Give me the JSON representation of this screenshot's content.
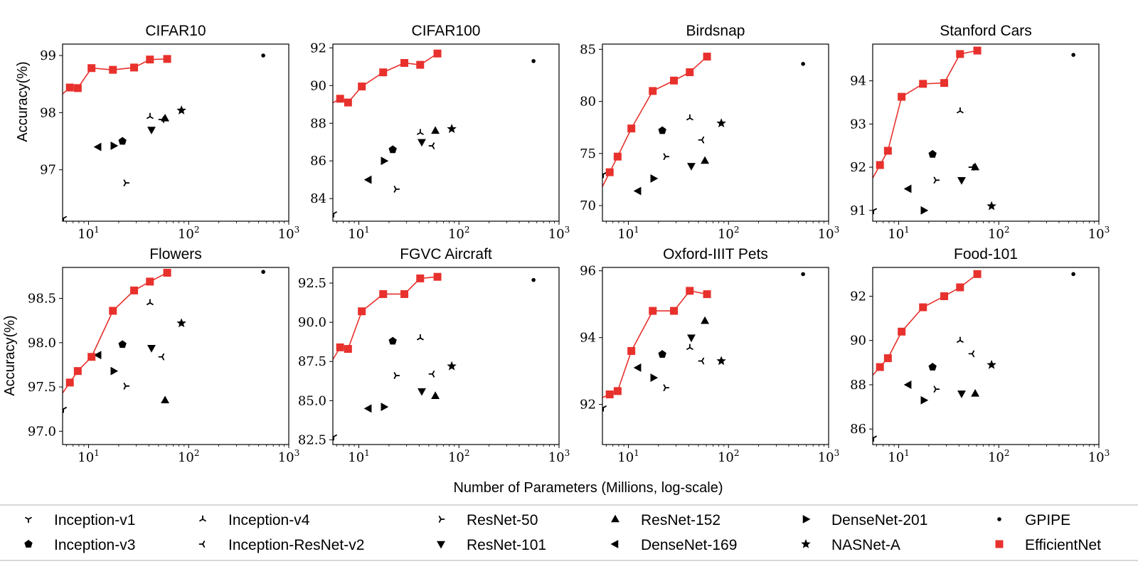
{
  "figure": {
    "xlabel": "Number of Parameters (Millions, log-scale)",
    "ylabel": "Accuracy(%)",
    "x_scale": "log",
    "grid": false,
    "legend_position": "bottom",
    "x_tick_labels": [
      {
        "base": "10",
        "exp": "1"
      },
      {
        "base": "10",
        "exp": "2"
      },
      {
        "base": "10",
        "exp": "3"
      }
    ]
  },
  "series_styles": [
    {
      "name": "Inception-v1",
      "marker": "tri-down-small",
      "color": "#000000"
    },
    {
      "name": "Inception-v3",
      "marker": "pentagon",
      "color": "#000000"
    },
    {
      "name": "Inception-v4",
      "marker": "tri-up-small",
      "color": "#000000"
    },
    {
      "name": "Inception-ResNet-v2",
      "marker": "tri-left-small",
      "color": "#000000"
    },
    {
      "name": "ResNet-50",
      "marker": "tri-right-small",
      "color": "#000000"
    },
    {
      "name": "ResNet-101",
      "marker": "triangle-down",
      "color": "#000000"
    },
    {
      "name": "ResNet-152",
      "marker": "triangle-up",
      "color": "#000000"
    },
    {
      "name": "DenseNet-169",
      "marker": "triangle-left",
      "color": "#000000"
    },
    {
      "name": "DenseNet-201",
      "marker": "triangle-right",
      "color": "#000000"
    },
    {
      "name": "NASNet-A",
      "marker": "star",
      "color": "#000000"
    },
    {
      "name": "GPIPE",
      "marker": "dot",
      "color": "#000000"
    },
    {
      "name": "EfficientNet",
      "marker": "square",
      "color": "#e8312d"
    }
  ],
  "chart_data": [
    {
      "type": "scatter",
      "title": "CIFAR10",
      "x_scale": "log",
      "xlim": [
        5.5,
        1000
      ],
      "ylim": [
        96.1,
        99.2
      ],
      "yticks": [
        97,
        98,
        99
      ],
      "ytick_labels": [
        "97",
        "98",
        "99"
      ],
      "efficientnet": {
        "x": [
          6.5,
          7.8,
          10.7,
          17.5,
          28.5,
          41,
          61
        ],
        "y": [
          98.44,
          98.43,
          98.78,
          98.75,
          98.79,
          98.93,
          98.94
        ]
      },
      "points": {
        "Inception-v1": [
          5.6,
          96.15
        ],
        "Inception-v3": [
          21.8,
          97.5
        ],
        "Inception-v4": [
          41.1,
          97.93
        ],
        "Inception-ResNet-v2": [
          54.3,
          97.88
        ],
        "ResNet-50": [
          23.5,
          96.77
        ],
        "ResNet-101": [
          42.5,
          97.7
        ],
        "ResNet-152": [
          58.1,
          97.9
        ],
        "DenseNet-169": [
          12.5,
          97.4
        ],
        "DenseNet-201": [
          17.8,
          97.42
        ],
        "NASNet-A": [
          84.7,
          98.04
        ],
        "GPIPE": [
          556,
          99.0
        ]
      }
    },
    {
      "type": "scatter",
      "title": "CIFAR100",
      "x_scale": "log",
      "xlim": [
        5.5,
        1000
      ],
      "ylim": [
        82.8,
        92.2
      ],
      "yticks": [
        84,
        86,
        88,
        90,
        92
      ],
      "ytick_labels": [
        "84",
        "86",
        "88",
        "90",
        "92"
      ],
      "efficientnet": {
        "x": [
          6.5,
          7.8,
          10.7,
          17.5,
          28.5,
          41,
          61
        ],
        "y": [
          89.3,
          89.1,
          89.95,
          90.7,
          91.2,
          91.1,
          91.7
        ]
      },
      "points": {
        "Inception-v1": [
          5.6,
          83.2
        ],
        "Inception-v3": [
          21.8,
          86.6
        ],
        "Inception-v4": [
          41.1,
          87.5
        ],
        "Inception-ResNet-v2": [
          54.3,
          86.8
        ],
        "ResNet-50": [
          23.5,
          84.5
        ],
        "ResNet-101": [
          42.5,
          87.0
        ],
        "ResNet-152": [
          58.1,
          87.6
        ],
        "DenseNet-169": [
          12.5,
          85.0
        ],
        "DenseNet-201": [
          17.8,
          86.0
        ],
        "NASNet-A": [
          84.7,
          87.7
        ],
        "GPIPE": [
          556,
          91.3
        ]
      }
    },
    {
      "type": "scatter",
      "title": "Birdsnap",
      "x_scale": "log",
      "xlim": [
        5.5,
        1000
      ],
      "ylim": [
        68.5,
        85.5
      ],
      "yticks": [
        70,
        75,
        80,
        85
      ],
      "ytick_labels": [
        "70",
        "75",
        "80",
        "85"
      ],
      "efficientnet": {
        "x": [
          6.5,
          7.8,
          10.7,
          17.5,
          28.5,
          41,
          61
        ],
        "y": [
          73.2,
          74.7,
          77.4,
          81.0,
          82.0,
          82.8,
          84.3
        ]
      },
      "points": {
        "Inception-v1": [
          5.6,
          73.0
        ],
        "Inception-v3": [
          21.8,
          77.2
        ],
        "Inception-v4": [
          41.1,
          78.4
        ],
        "Inception-ResNet-v2": [
          54.3,
          76.3
        ],
        "ResNet-50": [
          23.5,
          74.7
        ],
        "ResNet-101": [
          42.5,
          73.8
        ],
        "ResNet-152": [
          58.1,
          74.3
        ],
        "DenseNet-169": [
          12.5,
          71.4
        ],
        "DenseNet-201": [
          17.8,
          72.6
        ],
        "NASNet-A": [
          84.7,
          77.9
        ],
        "GPIPE": [
          556,
          83.6
        ]
      }
    },
    {
      "type": "scatter",
      "title": "Stanford Cars",
      "x_scale": "log",
      "xlim": [
        5.5,
        1000
      ],
      "ylim": [
        90.75,
        94.85
      ],
      "yticks": [
        91,
        92,
        93,
        94
      ],
      "ytick_labels": [
        "91",
        "92",
        "93",
        "94"
      ],
      "efficientnet": {
        "x": [
          6.5,
          7.8,
          10.7,
          17.5,
          28.5,
          41,
          61
        ],
        "y": [
          92.05,
          92.38,
          93.63,
          93.93,
          93.95,
          94.62,
          94.7
        ]
      },
      "points": {
        "Inception-v1": [
          5.6,
          91.0
        ],
        "Inception-v3": [
          21.8,
          92.3
        ],
        "Inception-v4": [
          41.1,
          93.3
        ],
        "Inception-ResNet-v2": [
          54.3,
          92.0
        ],
        "ResNet-50": [
          23.5,
          91.7
        ],
        "ResNet-101": [
          42.5,
          91.7
        ],
        "ResNet-152": [
          58.1,
          92.0
        ],
        "DenseNet-169": [
          12.5,
          91.5
        ],
        "DenseNet-201": [
          17.8,
          91.0
        ],
        "NASNet-A": [
          84.7,
          91.1
        ],
        "GPIPE": [
          556,
          94.6
        ]
      }
    },
    {
      "type": "scatter",
      "title": "Flowers",
      "x_scale": "log",
      "xlim": [
        5.5,
        1000
      ],
      "ylim": [
        96.85,
        98.85
      ],
      "yticks": [
        97.0,
        97.5,
        98.0,
        98.5
      ],
      "ytick_labels": [
        "97.0",
        "97.5",
        "98.0",
        "98.5"
      ],
      "efficientnet": {
        "x": [
          6.5,
          7.8,
          10.7,
          17.5,
          28.5,
          41,
          61
        ],
        "y": [
          97.55,
          97.68,
          97.84,
          98.36,
          98.59,
          98.69,
          98.79
        ]
      },
      "points": {
        "Inception-v1": [
          5.6,
          97.25
        ],
        "Inception-v3": [
          21.8,
          97.98
        ],
        "Inception-v4": [
          41.1,
          98.45
        ],
        "Inception-ResNet-v2": [
          54.3,
          97.84
        ],
        "ResNet-50": [
          23.5,
          97.51
        ],
        "ResNet-101": [
          42.5,
          97.94
        ],
        "ResNet-152": [
          58.1,
          97.35
        ],
        "DenseNet-169": [
          12.5,
          97.86
        ],
        "DenseNet-201": [
          17.8,
          97.68
        ],
        "NASNet-A": [
          84.7,
          98.22
        ],
        "GPIPE": [
          556,
          98.8
        ]
      }
    },
    {
      "type": "scatter",
      "title": "FGVC Aircraft",
      "x_scale": "log",
      "xlim": [
        5.5,
        1000
      ],
      "ylim": [
        82.2,
        93.5
      ],
      "yticks": [
        82.5,
        85.0,
        87.5,
        90.0,
        92.5
      ],
      "ytick_labels": [
        "82.5",
        "85.0",
        "87.5",
        "90.0",
        "92.5"
      ],
      "efficientnet": {
        "x": [
          6.5,
          7.8,
          10.7,
          17.5,
          28.5,
          41,
          61
        ],
        "y": [
          88.4,
          88.3,
          90.7,
          91.8,
          91.8,
          92.8,
          92.9
        ]
      },
      "points": {
        "Inception-v1": [
          5.6,
          82.7
        ],
        "Inception-v3": [
          21.8,
          88.8
        ],
        "Inception-v4": [
          41.1,
          89.0
        ],
        "Inception-ResNet-v2": [
          54.3,
          86.7
        ],
        "ResNet-50": [
          23.5,
          86.6
        ],
        "ResNet-101": [
          42.5,
          85.6
        ],
        "ResNet-152": [
          58.1,
          85.3
        ],
        "DenseNet-169": [
          12.5,
          84.5
        ],
        "DenseNet-201": [
          17.8,
          84.6
        ],
        "NASNet-A": [
          84.7,
          87.2
        ],
        "GPIPE": [
          556,
          92.7
        ]
      }
    },
    {
      "type": "scatter",
      "title": "Oxford-IIIT Pets",
      "x_scale": "log",
      "xlim": [
        5.5,
        1000
      ],
      "ylim": [
        90.8,
        96.1
      ],
      "yticks": [
        92,
        94,
        96
      ],
      "ytick_labels": [
        "92",
        "94",
        "96"
      ],
      "efficientnet": {
        "x": [
          6.5,
          7.8,
          10.7,
          17.5,
          28.5,
          41,
          61
        ],
        "y": [
          92.3,
          92.4,
          93.6,
          94.8,
          94.8,
          95.4,
          95.3
        ]
      },
      "points": {
        "Inception-v1": [
          5.6,
          91.9
        ],
        "Inception-v3": [
          21.8,
          93.5
        ],
        "Inception-v4": [
          41.1,
          93.7
        ],
        "Inception-ResNet-v2": [
          54.3,
          93.3
        ],
        "ResNet-50": [
          23.5,
          92.5
        ],
        "ResNet-101": [
          42.5,
          94.0
        ],
        "ResNet-152": [
          58.1,
          94.5
        ],
        "DenseNet-169": [
          12.5,
          93.1
        ],
        "DenseNet-201": [
          17.8,
          92.8
        ],
        "NASNet-A": [
          84.7,
          93.3
        ],
        "GPIPE": [
          556,
          95.9
        ]
      }
    },
    {
      "type": "scatter",
      "title": "Food-101",
      "x_scale": "log",
      "xlim": [
        5.5,
        1000
      ],
      "ylim": [
        85.3,
        93.3
      ],
      "yticks": [
        86,
        88,
        90,
        92
      ],
      "ytick_labels": [
        "86",
        "88",
        "90",
        "92"
      ],
      "efficientnet": {
        "x": [
          6.5,
          7.8,
          10.7,
          17.5,
          28.5,
          41,
          61
        ],
        "y": [
          88.8,
          89.2,
          90.4,
          91.5,
          92.0,
          92.4,
          93.0
        ]
      },
      "points": {
        "Inception-v1": [
          5.6,
          85.6
        ],
        "Inception-v3": [
          21.8,
          88.8
        ],
        "Inception-v4": [
          41.1,
          90.0
        ],
        "Inception-ResNet-v2": [
          54.3,
          89.4
        ],
        "ResNet-50": [
          23.5,
          87.8
        ],
        "ResNet-101": [
          42.5,
          87.6
        ],
        "ResNet-152": [
          58.1,
          87.6
        ],
        "DenseNet-169": [
          12.5,
          88.0
        ],
        "DenseNet-201": [
          17.8,
          87.3
        ],
        "NASNet-A": [
          84.7,
          88.9
        ],
        "GPIPE": [
          556,
          93.0
        ]
      }
    }
  ]
}
